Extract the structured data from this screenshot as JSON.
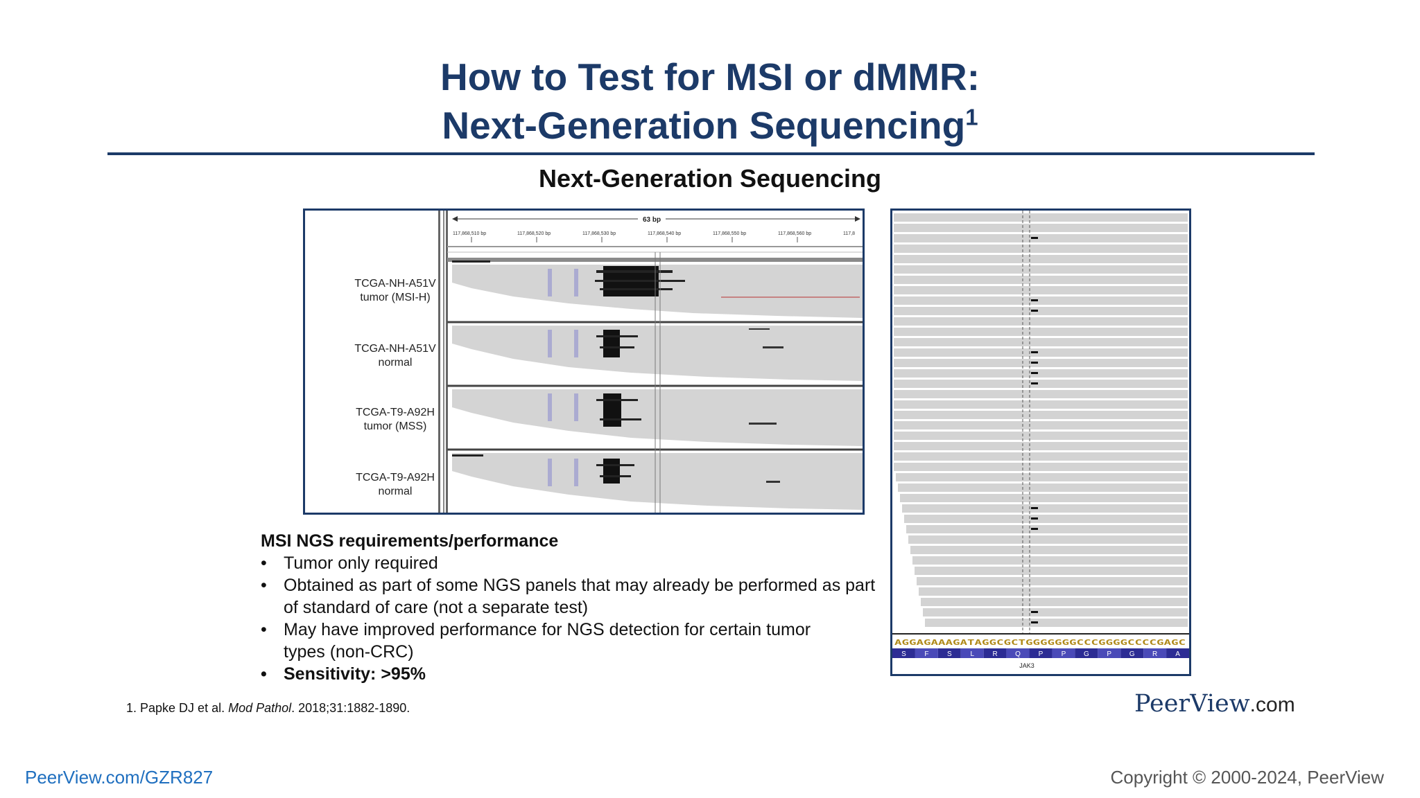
{
  "slide": {
    "title_line1": "How to Test for MSI or dMMR:",
    "title_line2": "Next-Generation Sequencing",
    "title_superscript": "1",
    "subtitle": "Next-Generation Sequencing"
  },
  "igv_left": {
    "ruler_label": "63 bp",
    "ticks": [
      "117,868,510 bp",
      "117,868,520 bp",
      "117,868,530 bp",
      "117,868,540 bp",
      "117,868,550 bp",
      "117,868,560 bp",
      "117,8"
    ],
    "tracks": [
      {
        "line1": "TCGA-NH-A51V",
        "line2": "tumor (MSI-H)"
      },
      {
        "line1": "TCGA-NH-A51V",
        "line2": "normal"
      },
      {
        "line1": "TCGA-T9-A92H",
        "line2": "tumor (MSS)"
      },
      {
        "line1": "TCGA-T9-A92H",
        "line2": "normal"
      }
    ]
  },
  "igv_right": {
    "sequence": "AGGAGAAAGATAGGCGCTGGGGGGGCCCGGGGCCCCGAGC",
    "amino_acids": [
      "S",
      "F",
      "S",
      "L",
      "R",
      "Q",
      "P",
      "P",
      "G",
      "P",
      "G",
      "R",
      "A"
    ],
    "gene": "JAK3"
  },
  "requirements": {
    "heading": "MSI NGS requirements/performance",
    "bullets": [
      "Tumor only required",
      "Obtained as part of some NGS panels that may already be performed as part of standard of care (not a separate test)",
      "May have improved performance for NGS detection for certain tumor types (non-CRC)"
    ],
    "bold_bullet": "Sensitivity: >95%"
  },
  "citation": {
    "prefix": "1. Papke DJ et al. ",
    "journal": "Mod Pathol",
    "suffix": ". 2018;31:1882-1890."
  },
  "footer": {
    "brand_name": "PeerView",
    "brand_suffix": ".com",
    "link": "PeerView.com/GZR827",
    "copyright": "Copyright © 2000-2024, PeerView"
  },
  "colors": {
    "title": "#1c3a68",
    "link": "#1f6fbf",
    "read_gray": "#d4d4d4"
  }
}
